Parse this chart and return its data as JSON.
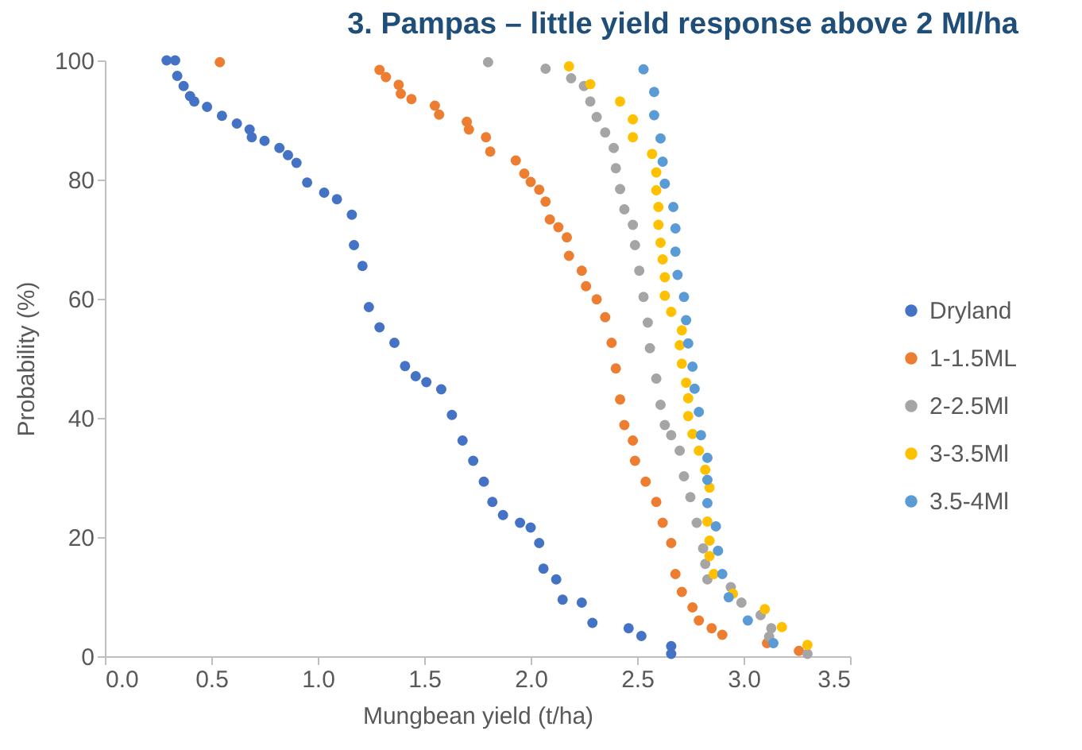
{
  "chart_data": {
    "type": "scatter",
    "title": "3. Pampas – little yield response above 2 Ml/ha",
    "xlabel": "Mungbean yield (t/ha)",
    "ylabel": "Probability (%)",
    "xlim": [
      0,
      3.5
    ],
    "ylim": [
      0,
      100
    ],
    "xticks": [
      {
        "value": 0,
        "label": "0.0"
      },
      {
        "value": 0.5,
        "label": "0.5"
      },
      {
        "value": 1,
        "label": "1.0"
      },
      {
        "value": 1.5,
        "label": "1.5"
      },
      {
        "value": 2,
        "label": "2.0"
      },
      {
        "value": 2.5,
        "label": "2.5"
      },
      {
        "value": 3,
        "label": "3.0"
      },
      {
        "value": 3.5,
        "label": "3.5"
      }
    ],
    "yticks": [
      0,
      20,
      40,
      60,
      80,
      100
    ],
    "legend": "right",
    "marker": "circle",
    "series": [
      {
        "name": "Dryland",
        "color": "#4472c4",
        "x": [
          0.29,
          0.33,
          0.34,
          0.37,
          0.4,
          0.42,
          0.48,
          0.55,
          0.62,
          0.68,
          0.69,
          0.75,
          0.82,
          0.86,
          0.9,
          0.95,
          1.03,
          1.09,
          1.16,
          1.17,
          1.21,
          1.24,
          1.29,
          1.36,
          1.41,
          1.46,
          1.51,
          1.58,
          1.63,
          1.68,
          1.73,
          1.78,
          1.82,
          1.87,
          1.95,
          2.0,
          2.04,
          2.06,
          2.12,
          2.15,
          2.24,
          2.29,
          2.46,
          2.52,
          2.66,
          2.66
        ],
        "values": [
          100,
          100,
          97.4,
          95.7,
          94,
          93.1,
          92.2,
          90.7,
          89.4,
          88.4,
          87.1,
          86.5,
          85.3,
          84.1,
          82.8,
          79.5,
          77.8,
          76.7,
          74.1,
          69,
          65.5,
          58.6,
          55.2,
          52.6,
          48.7,
          47,
          46,
          44.8,
          40.5,
          36.2,
          32.8,
          29.3,
          25.9,
          23.7,
          22.4,
          21.6,
          19,
          14.7,
          12.9,
          9.5,
          9,
          5.6,
          4.7,
          3.4,
          1.7,
          0.4
        ]
      },
      {
        "name": "1-1.5ML",
        "color": "#ed7d31",
        "x": [
          0.54,
          1.29,
          1.32,
          1.38,
          1.39,
          1.44,
          1.55,
          1.57,
          1.7,
          1.71,
          1.79,
          1.81,
          1.93,
          1.97,
          2.0,
          2.04,
          2.07,
          2.09,
          2.13,
          2.17,
          2.18,
          2.24,
          2.26,
          2.31,
          2.35,
          2.38,
          2.4,
          2.42,
          2.44,
          2.48,
          2.49,
          2.54,
          2.59,
          2.62,
          2.66,
          2.68,
          2.71,
          2.76,
          2.79,
          2.85,
          2.9,
          3.11,
          3.26
        ],
        "values": [
          99.7,
          98.4,
          97.2,
          95.9,
          94.4,
          93.5,
          92.4,
          90.9,
          89.7,
          88.4,
          87.1,
          84.7,
          83.2,
          81,
          79.6,
          78.3,
          76.3,
          73.3,
          72,
          70.3,
          67.2,
          64.7,
          62.1,
          59.9,
          56.9,
          52.6,
          48.3,
          43.1,
          38.8,
          36.2,
          32.8,
          29.3,
          25.9,
          22.4,
          19,
          13.8,
          10.8,
          8.2,
          6,
          4.7,
          3.6,
          2.2,
          0.9
        ]
      },
      {
        "name": "2-2.5Ml",
        "color": "#a5a5a5",
        "x": [
          1.8,
          2.07,
          2.19,
          2.25,
          2.28,
          2.31,
          2.35,
          2.39,
          2.4,
          2.42,
          2.44,
          2.48,
          2.49,
          2.51,
          2.53,
          2.55,
          2.56,
          2.59,
          2.61,
          2.63,
          2.66,
          2.7,
          2.72,
          2.75,
          2.78,
          2.81,
          2.82,
          2.83,
          2.94,
          2.99,
          3.08,
          3.13,
          3.12,
          3.3
        ],
        "values": [
          99.7,
          98.6,
          97,
          95.7,
          93.1,
          90.5,
          87.9,
          85.3,
          81.9,
          78.4,
          75,
          72.4,
          69,
          64.7,
          60.3,
          56,
          51.7,
          46.6,
          42.2,
          38.8,
          37.1,
          34.5,
          30.2,
          26.7,
          22.4,
          18.1,
          15.5,
          12.9,
          11.6,
          9,
          6.9,
          4.7,
          3.3,
          0.4
        ]
      },
      {
        "name": "3-3.5Ml",
        "color": "#ffc000",
        "x": [
          2.18,
          2.28,
          2.42,
          2.48,
          2.48,
          2.57,
          2.59,
          2.59,
          2.6,
          2.6,
          2.61,
          2.62,
          2.63,
          2.63,
          2.66,
          2.71,
          2.7,
          2.71,
          2.73,
          2.74,
          2.74,
          2.76,
          2.79,
          2.82,
          2.84,
          2.83,
          2.84,
          2.84,
          2.86,
          2.95,
          3.1,
          3.18,
          3.3
        ],
        "values": [
          99,
          96,
          93.1,
          90.1,
          87.1,
          84.3,
          81.2,
          78.2,
          75.4,
          72.4,
          69.4,
          66.6,
          63.6,
          60.5,
          57.8,
          54.7,
          52.2,
          49.1,
          45.9,
          43.3,
          40.3,
          37.3,
          34.5,
          31.3,
          28.3,
          22.6,
          19.4,
          16.8,
          13.8,
          10.5,
          7.9,
          4.9,
          1.9
        ]
      },
      {
        "name": "3.5-4Ml",
        "color": "#5b9bd5",
        "x": [
          2.53,
          2.58,
          2.58,
          2.61,
          2.62,
          2.63,
          2.67,
          2.68,
          2.68,
          2.69,
          2.72,
          2.73,
          2.74,
          2.76,
          2.77,
          2.79,
          2.8,
          2.83,
          2.83,
          2.83,
          2.87,
          2.88,
          2.9,
          2.93,
          3.02,
          3.14
        ],
        "values": [
          98.5,
          94.7,
          90.8,
          86.9,
          83,
          79.3,
          75.4,
          71.8,
          67.9,
          64,
          60.3,
          56.4,
          52.5,
          48.6,
          44.9,
          41,
          37.1,
          33.3,
          29.6,
          25.7,
          21.8,
          17.7,
          13.8,
          9.9,
          6,
          2.2
        ]
      }
    ]
  }
}
